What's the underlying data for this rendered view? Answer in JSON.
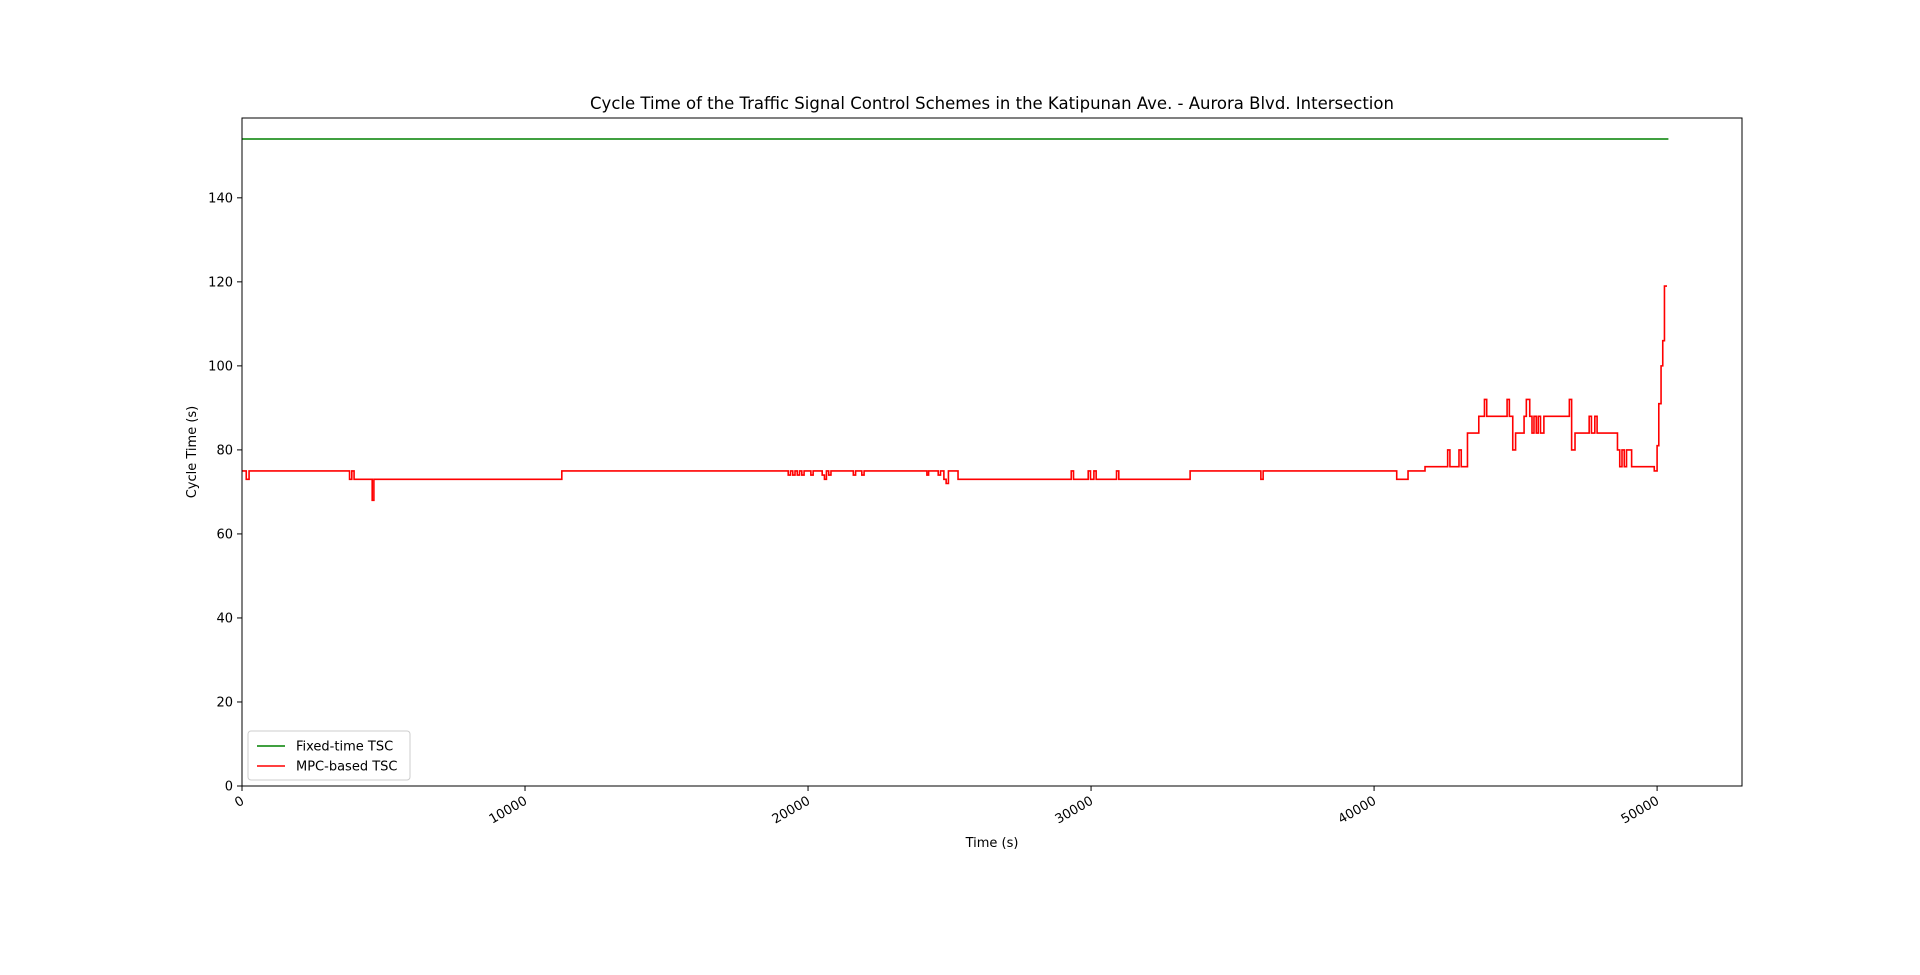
{
  "chart_data": {
    "type": "line",
    "title": "Cycle Time of the Traffic Signal Control Schemes in the Katipunan Ave. - Aurora Blvd. Intersection",
    "xlabel": "Time (s)",
    "ylabel": "Cycle Time (s)",
    "xlim": [
      0,
      53000
    ],
    "ylim": [
      0,
      159
    ],
    "xticks": [
      0,
      10000,
      20000,
      30000,
      40000,
      50000
    ],
    "xtick_labels": [
      "0",
      "10000",
      "20000",
      "30000",
      "40000",
      "50000"
    ],
    "yticks": [
      0,
      20,
      40,
      60,
      80,
      100,
      120,
      140
    ],
    "ytick_labels": [
      "0",
      "20",
      "40",
      "60",
      "80",
      "100",
      "120",
      "140"
    ],
    "grid": false,
    "legend_position": "lower-left",
    "series": [
      {
        "name": "Fixed-time TSC",
        "color": "#008000",
        "x": [
          0,
          50400
        ],
        "y": [
          154,
          154
        ]
      },
      {
        "name": "MPC-based TSC",
        "color": "#ff0000",
        "step": true,
        "x": [
          0,
          150,
          250,
          3800,
          3880,
          3960,
          4600,
          4660,
          11300,
          19300,
          19380,
          19460,
          19540,
          19620,
          19700,
          19780,
          19860,
          20100,
          20180,
          20500,
          20580,
          20650,
          20730,
          20810,
          20890,
          21600,
          21680,
          21900,
          21980,
          24200,
          24260,
          24600,
          24680,
          24800,
          24880,
          24960,
          25040,
          25300,
          29300,
          29380,
          29900,
          29980,
          30100,
          30180,
          30900,
          30980,
          33500,
          36000,
          36080,
          40800,
          41200,
          41800,
          42600,
          42680,
          43000,
          43080,
          43200,
          43300,
          43700,
          43900,
          43980,
          44700,
          44780,
          44900,
          45000,
          45300,
          45380,
          45500,
          45580,
          45650,
          45730,
          45800,
          45880,
          46000,
          46900,
          46980,
          47100,
          47200,
          47600,
          47680,
          47800,
          47880,
          47950,
          48600,
          48680,
          48760,
          48840,
          48920,
          49100,
          49900,
          50000,
          50060,
          50140,
          50200,
          50260,
          50350
        ],
        "y": [
          75,
          73,
          75,
          73,
          75,
          73,
          68,
          73,
          75,
          74,
          75,
          74,
          75,
          74,
          75,
          74,
          75,
          74,
          75,
          74,
          73,
          75,
          74,
          75,
          75,
          74,
          75,
          74,
          75,
          74,
          75,
          74,
          75,
          73,
          72,
          75,
          75,
          73,
          75,
          73,
          75,
          73,
          75,
          73,
          75,
          73,
          75,
          73,
          75,
          73,
          75,
          76,
          80,
          76,
          80,
          76,
          76,
          84,
          88,
          92,
          88,
          92,
          88,
          80,
          84,
          88,
          92,
          88,
          84,
          88,
          84,
          88,
          84,
          88,
          92,
          80,
          84,
          84,
          88,
          84,
          88,
          84,
          84,
          80,
          76,
          80,
          76,
          80,
          76,
          75,
          81,
          91,
          100,
          106,
          119,
          119
        ]
      }
    ]
  }
}
